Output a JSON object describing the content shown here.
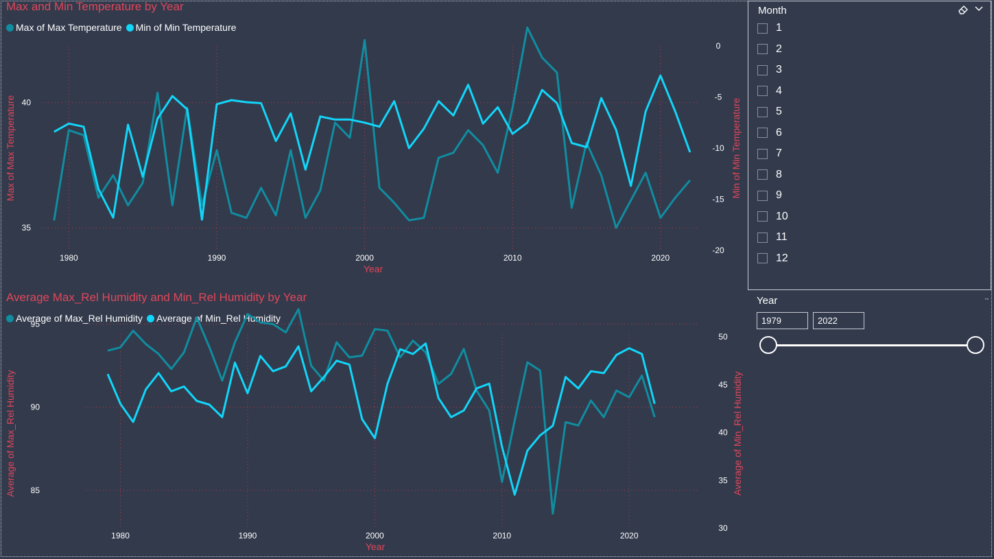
{
  "colors": {
    "max_series": "#118dff",
    "dark_series": "#118da0",
    "bright_series": "#12d6f9",
    "title": "#e2475a",
    "background": "#323a4c",
    "grid": "#c0394b"
  },
  "chart_data": [
    {
      "type": "line",
      "title": "Max and Min Temperature by Year",
      "xlabel": "Year",
      "ylabel": "Max of Max Temperature",
      "y2label": "Min of Min Temperature",
      "legend_placement": "top-left",
      "x": [
        1979,
        1980,
        1981,
        1982,
        1983,
        1984,
        1985,
        1986,
        1987,
        1988,
        1989,
        1990,
        1991,
        1992,
        1993,
        1994,
        1995,
        1996,
        1997,
        1998,
        1999,
        2000,
        2001,
        2002,
        2003,
        2004,
        2005,
        2006,
        2007,
        2008,
        2009,
        2010,
        2011,
        2012,
        2013,
        2014,
        2015,
        2016,
        2017,
        2018,
        2019,
        2020,
        2021,
        2022
      ],
      "xlim": [
        1978.5,
        2022.7
      ],
      "xticks": [
        "1980",
        "1990",
        "2000",
        "2010",
        "2020"
      ],
      "ylim": [
        34.1,
        44.1
      ],
      "yticks": [
        "35",
        "40"
      ],
      "y2lim": [
        -20,
        0
      ],
      "y2ticks": [
        "0",
        "-5",
        "-10",
        "-15",
        "-20"
      ],
      "series": [
        {
          "name": "Max of Max Temperature",
          "axis": "left",
          "color": "#118da0",
          "values": [
            35.3,
            38.9,
            38.7,
            36.2,
            37.1,
            35.9,
            36.8,
            40.4,
            35.9,
            39.8,
            35.9,
            38.1,
            35.6,
            35.4,
            36.6,
            35.5,
            38.1,
            35.4,
            36.5,
            39.2,
            38.6,
            42.5,
            36.6,
            36.0,
            35.3,
            35.4,
            37.8,
            38.0,
            38.9,
            38.3,
            37.2,
            39.8,
            43.0,
            41.8,
            41.2,
            35.8,
            38.4,
            37.1,
            35.0,
            36.1,
            37.2,
            35.4,
            36.2,
            36.9
          ]
        },
        {
          "name": "Min of Min Temperature",
          "axis": "right",
          "color": "#12d6f9",
          "values": [
            -8.4,
            -7.6,
            -7.9,
            -14.0,
            -16.8,
            -7.7,
            -12.8,
            -7.1,
            -4.9,
            -6.2,
            -17.0,
            -5.7,
            -5.3,
            -5.5,
            -5.6,
            -9.3,
            -6.6,
            -12.1,
            -6.9,
            -7.2,
            -7.2,
            -7.5,
            -7.9,
            -5.4,
            -10.0,
            -8.1,
            -5.4,
            -6.8,
            -3.8,
            -7.6,
            -6.0,
            -8.6,
            -7.5,
            -4.3,
            -5.6,
            -9.5,
            -9.9,
            -5.1,
            -8.2,
            -13.7,
            -6.4,
            -2.9,
            -6.4,
            -10.4
          ]
        }
      ]
    },
    {
      "type": "line",
      "title": "Average Max_Rel Humidity and Min_Rel Humidity by Year",
      "xlabel": "Year",
      "ylabel": "Average of Max_Rel Humidity",
      "y2label": "Average of Min_Rel Humidity",
      "legend_placement": "top-left",
      "x": [
        1979,
        1980,
        1981,
        1982,
        1983,
        1984,
        1985,
        1986,
        1987,
        1988,
        1989,
        1990,
        1991,
        1992,
        1993,
        1994,
        1995,
        1996,
        1997,
        1998,
        1999,
        2000,
        2001,
        2002,
        2003,
        2004,
        2005,
        2006,
        2007,
        2008,
        2009,
        2010,
        2011,
        2012,
        2013,
        2014,
        2015,
        2016,
        2017,
        2018,
        2019,
        2020,
        2021,
        2022
      ],
      "xlim": [
        1974.2,
        2025.6
      ],
      "xticks": [
        "1980",
        "1990",
        "2000",
        "2010",
        "2020"
      ],
      "ylim": [
        81.9,
        97.0
      ],
      "yticks": [
        "85",
        "90",
        "95"
      ],
      "y2lim": [
        30,
        50
      ],
      "y2ticks": [
        "50",
        "45",
        "40",
        "35",
        "30"
      ],
      "series": [
        {
          "name": "Average of Max_Rel Humidity",
          "axis": "left",
          "color": "#118da0",
          "values": [
            93.4,
            93.6,
            94.6,
            93.8,
            93.2,
            92.3,
            93.3,
            95.4,
            93.6,
            91.6,
            93.9,
            95.6,
            95.1,
            95.0,
            94.5,
            95.9,
            92.5,
            91.6,
            93.9,
            93.0,
            93.1,
            94.7,
            94.6,
            93.0,
            94.0,
            93.3,
            91.4,
            92.0,
            93.5,
            91.0,
            89.8,
            85.5,
            89.2,
            92.7,
            92.2,
            83.6,
            89.1,
            88.9,
            90.4,
            89.4,
            91.0,
            90.6,
            91.9,
            89.4
          ]
        },
        {
          "name": "Average of Min_Rel Humidity",
          "axis": "right",
          "color": "#12d6f9",
          "values": [
            46.1,
            43.0,
            41.1,
            44.5,
            46.2,
            44.3,
            44.8,
            43.3,
            42.9,
            41.6,
            47.3,
            44.1,
            48.0,
            46.4,
            46.9,
            49.0,
            44.3,
            45.8,
            47.5,
            47.1,
            41.4,
            39.4,
            45.1,
            48.7,
            48.2,
            49.3,
            43.6,
            41.6,
            42.3,
            44.6,
            45.1,
            38.5,
            33.5,
            38.1,
            39.7,
            40.7,
            45.8,
            44.6,
            46.4,
            46.2,
            48.1,
            48.8,
            48.2,
            43.0
          ]
        }
      ]
    }
  ],
  "month_slicer": {
    "title": "Month",
    "eraser_icon": "eraser-icon",
    "chevron_icon": "chevron-down-icon",
    "items": [
      "1",
      "2",
      "3",
      "4",
      "5",
      "6",
      "7",
      "8",
      "9",
      "10",
      "11",
      "12"
    ]
  },
  "year_slicer": {
    "title": "Year",
    "more": "··",
    "from": "1979",
    "to": "2022",
    "range_fraction": [
      0,
      1
    ]
  }
}
